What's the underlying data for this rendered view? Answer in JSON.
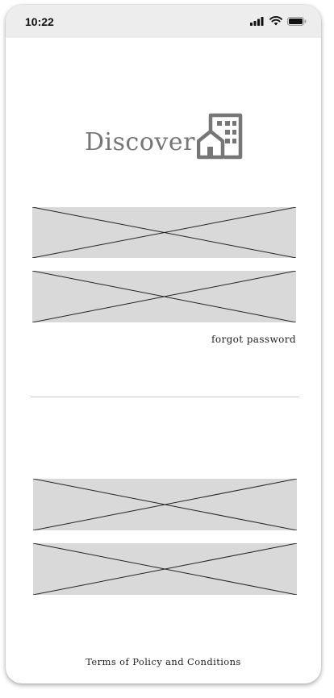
{
  "status_bar": {
    "time": "10:22",
    "icons": [
      "cellular-signal-icon",
      "wifi-icon",
      "battery-icon"
    ]
  },
  "brand": {
    "name": "Discover",
    "icon": "building-house-icon",
    "color": "#767676"
  },
  "login_form": {
    "forgot_password_label": "forgot password"
  },
  "footer": {
    "terms_label": "Terms of Policy and Conditions"
  },
  "colors": {
    "placeholder_fill": "#d9d9d9",
    "status_bar_bg": "#eeeded",
    "divider": "#c9c9c9"
  }
}
